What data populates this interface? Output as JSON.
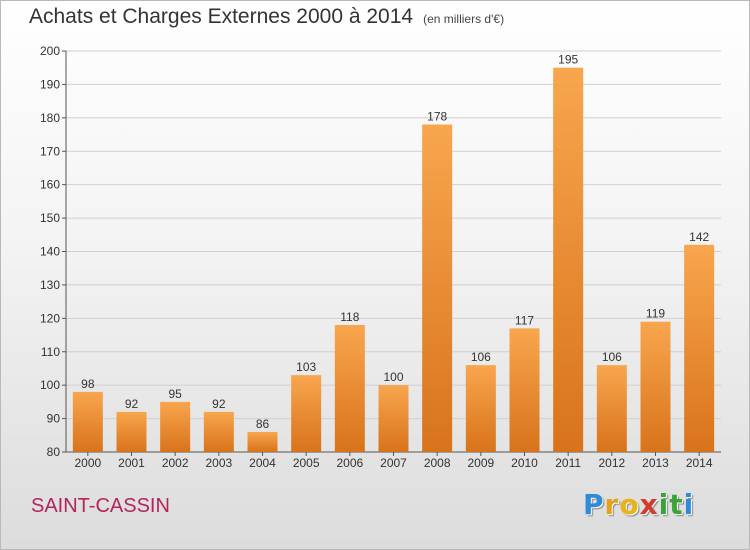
{
  "header": {
    "title": "Achats et Charges Externes 2000 à 2014",
    "subtitle": "(en milliers d'€)"
  },
  "footer": {
    "place": "SAINT-CASSIN",
    "logo_letters": [
      "P",
      "r",
      "o",
      "x",
      "i",
      "t",
      "i"
    ],
    "logo_colors": [
      "#2f8ad8",
      "#e2a21a",
      "#e8b21b",
      "#d43a2b",
      "#3aa43a",
      "#3aa43a",
      "#2f8ad8"
    ]
  },
  "colors": {
    "bar_light": "#f8a64e",
    "bar_dark": "#d8731b",
    "grid": "#d0d0d0",
    "axis": "#555555"
  },
  "chart_data": {
    "type": "bar",
    "title": "Achats et Charges Externes 2000 à 2014",
    "subtitle": "(en milliers d'€)",
    "categories": [
      "2000",
      "2001",
      "2002",
      "2003",
      "2004",
      "2005",
      "2006",
      "2007",
      "2008",
      "2009",
      "2010",
      "2011",
      "2012",
      "2013",
      "2014"
    ],
    "values": [
      98,
      92,
      95,
      92,
      86,
      103,
      118,
      100,
      178,
      106,
      117,
      195,
      106,
      119,
      142
    ],
    "ylim": [
      80,
      200
    ],
    "yticks": [
      80,
      90,
      100,
      110,
      120,
      130,
      140,
      150,
      160,
      170,
      180,
      190,
      200
    ],
    "grid": true,
    "xlabel": "",
    "ylabel": ""
  }
}
